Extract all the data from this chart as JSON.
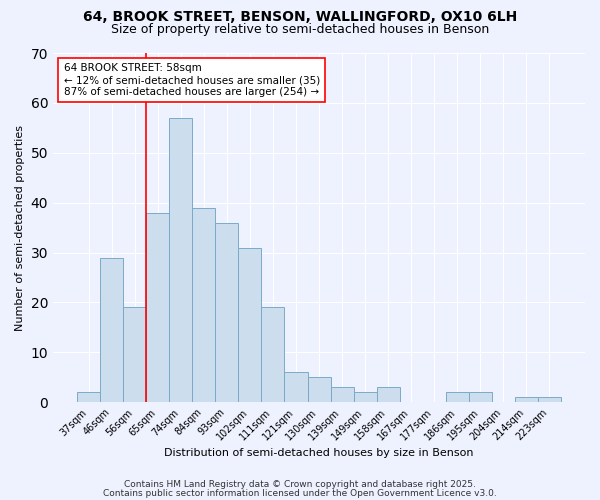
{
  "title_line1": "64, BROOK STREET, BENSON, WALLINGFORD, OX10 6LH",
  "title_line2": "Size of property relative to semi-detached houses in Benson",
  "xlabel": "Distribution of semi-detached houses by size in Benson",
  "ylabel": "Number of semi-detached properties",
  "categories": [
    "37sqm",
    "46sqm",
    "56sqm",
    "65sqm",
    "74sqm",
    "84sqm",
    "93sqm",
    "102sqm",
    "111sqm",
    "121sqm",
    "130sqm",
    "139sqm",
    "149sqm",
    "158sqm",
    "167sqm",
    "177sqm",
    "186sqm",
    "195sqm",
    "204sqm",
    "214sqm",
    "223sqm"
  ],
  "values": [
    2,
    29,
    19,
    38,
    57,
    39,
    36,
    31,
    19,
    6,
    5,
    3,
    2,
    3,
    0,
    0,
    2,
    2,
    0,
    1,
    1
  ],
  "bar_color": "#ccdded",
  "bar_edge_color": "#7aaac8",
  "red_line_x": 2.5,
  "annotation_line1": "64 BROOK STREET: 58sqm",
  "annotation_line2": "← 12% of semi-detached houses are smaller (35)",
  "annotation_line3": "87% of semi-detached houses are larger (254) →",
  "ylim": [
    0,
    70
  ],
  "yticks": [
    0,
    10,
    20,
    30,
    40,
    50,
    60,
    70
  ],
  "footnote1": "Contains HM Land Registry data © Crown copyright and database right 2025.",
  "footnote2": "Contains public sector information licensed under the Open Government Licence v3.0.",
  "background_color": "#eef2ff",
  "plot_background_color": "#eef2ff",
  "grid_color": "#ffffff",
  "title_fontsize": 10,
  "subtitle_fontsize": 9,
  "annotation_fontsize": 7.5,
  "footnote_fontsize": 6.5,
  "axis_label_fontsize": 8,
  "tick_fontsize": 7
}
